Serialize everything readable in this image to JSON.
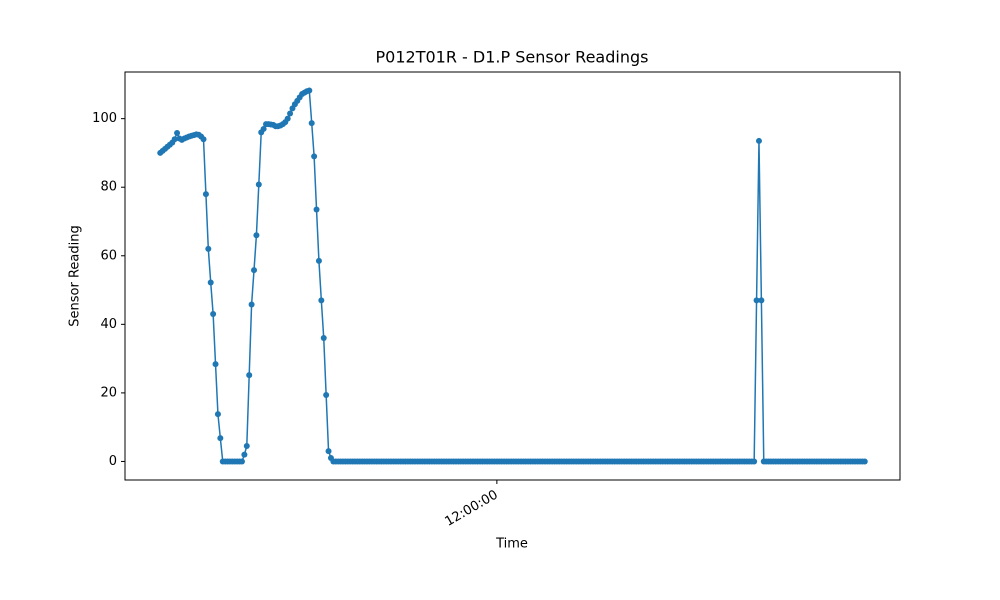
{
  "chart_data": {
    "type": "line",
    "title": "P012T01R - D1.P Sensor Readings",
    "x_label": "Time",
    "y_label": "Sensor Reading",
    "color": "#1f77b4",
    "categories": [
      null,
      null,
      null,
      null,
      null,
      null,
      null,
      null,
      null,
      null,
      null,
      null,
      null,
      null,
      null,
      null,
      null,
      null,
      null,
      null,
      null,
      null,
      null,
      null,
      null,
      null,
      null,
      null,
      null,
      null,
      null,
      null,
      null,
      null,
      null,
      null,
      null,
      null,
      null,
      null,
      null,
      null,
      null,
      null,
      null,
      null,
      null,
      null,
      null,
      null,
      null,
      null,
      null,
      null,
      null,
      null,
      null,
      null,
      null,
      null,
      null,
      null,
      null,
      null,
      null,
      null,
      null,
      null,
      null,
      null,
      null,
      null,
      null,
      null,
      null,
      null,
      null,
      null,
      null,
      null,
      null,
      null,
      null,
      null,
      null,
      null,
      null,
      null,
      null,
      null,
      null,
      null,
      null,
      null,
      null,
      null,
      null,
      null,
      null,
      null,
      null,
      null,
      null,
      null,
      null,
      null,
      null,
      null,
      null,
      null,
      null,
      null,
      null,
      null,
      null,
      null,
      null,
      null,
      null,
      null,
      null,
      null,
      null,
      null,
      null,
      null,
      null,
      null,
      null,
      null,
      null,
      null,
      null,
      null,
      null,
      null,
      null,
      null,
      null,
      null,
      "12:00:00",
      null,
      null,
      null,
      null,
      null,
      null,
      null,
      null,
      null,
      null,
      null,
      null,
      null,
      null,
      null,
      null,
      null,
      null,
      null,
      null,
      null,
      null,
      null,
      null,
      null,
      null,
      null,
      null,
      null,
      null,
      null,
      null,
      null,
      null,
      null,
      null,
      null,
      null,
      null,
      null,
      null,
      null,
      null,
      null,
      null,
      null,
      null,
      null,
      null,
      null,
      null,
      null,
      null,
      null,
      null,
      null,
      null,
      null,
      null,
      null,
      null,
      null,
      null,
      null,
      null,
      null,
      null,
      null,
      null,
      null,
      null,
      null,
      null,
      null,
      null,
      null,
      null,
      null,
      null,
      null,
      null,
      null,
      null,
      null,
      null,
      null,
      null,
      null,
      null,
      null,
      null,
      null,
      null,
      null,
      null,
      null,
      null,
      null,
      null,
      null,
      null,
      null,
      null,
      null,
      null,
      null,
      null,
      null,
      null,
      null,
      null,
      null,
      null,
      null,
      null,
      null,
      null,
      null,
      null,
      null,
      null,
      null,
      null,
      null,
      null,
      null,
      null,
      null,
      null,
      null,
      null,
      null,
      null,
      null,
      null,
      null,
      null,
      null,
      null,
      null,
      null,
      null,
      null,
      null,
      null,
      null,
      null,
      null,
      null,
      null,
      null,
      null,
      null
    ],
    "values": [
      90.0,
      90.6,
      91.2,
      91.8,
      92.4,
      93.0,
      94.0,
      95.8,
      94.2,
      93.8,
      94.2,
      94.5,
      94.8,
      95.0,
      95.2,
      95.4,
      95.3,
      94.8,
      94.0,
      78.0,
      62.0,
      52.2,
      43.0,
      28.4,
      13.8,
      6.8,
      0,
      0,
      0,
      0,
      0,
      0,
      0,
      0,
      0,
      2.0,
      4.5,
      25.2,
      45.8,
      55.8,
      66.0,
      80.8,
      96.0,
      97.0,
      98.4,
      98.4,
      98.3,
      98.2,
      97.8,
      97.8,
      98.0,
      98.4,
      99.0,
      100.0,
      101.5,
      103.0,
      104.2,
      105.2,
      106.2,
      107.2,
      107.6,
      108.0,
      108.2,
      98.7,
      89.0,
      73.5,
      58.5,
      47.0,
      36.0,
      19.4,
      3.0,
      1.0,
      0,
      0,
      0,
      0,
      0,
      0,
      0,
      0,
      0,
      0,
      0,
      0,
      0,
      0,
      0,
      0,
      0,
      0,
      0,
      0,
      0,
      0,
      0,
      0,
      0,
      0,
      0,
      0,
      0,
      0,
      0,
      0,
      0,
      0,
      0,
      0,
      0,
      0,
      0,
      0,
      0,
      0,
      0,
      0,
      0,
      0,
      0,
      0,
      0,
      0,
      0,
      0,
      0,
      0,
      0,
      0,
      0,
      0,
      0,
      0,
      0,
      0,
      0,
      0,
      0,
      0,
      0,
      0,
      0,
      0,
      0,
      0,
      0,
      0,
      0,
      0,
      0,
      0,
      0,
      0,
      0,
      0,
      0,
      0,
      0,
      0,
      0,
      0,
      0,
      0,
      0,
      0,
      0,
      0,
      0,
      0,
      0,
      0,
      0,
      0,
      0,
      0,
      0,
      0,
      0,
      0,
      0,
      0,
      0,
      0,
      0,
      0,
      0,
      0,
      0,
      0,
      0,
      0,
      0,
      0,
      0,
      0,
      0,
      0,
      0,
      0,
      0,
      0,
      0,
      0,
      0,
      0,
      0,
      0,
      0,
      0,
      0,
      0,
      0,
      0,
      0,
      0,
      0,
      0,
      0,
      0,
      0,
      0,
      0,
      0,
      0,
      0,
      0,
      0,
      0,
      0,
      0,
      0,
      0,
      0,
      0,
      0,
      0,
      0,
      0,
      0,
      0,
      0,
      0,
      0,
      0,
      0,
      0,
      0,
      0,
      0,
      47.0,
      93.5,
      47.0,
      0,
      0,
      0,
      0,
      0,
      0,
      0,
      0,
      0,
      0,
      0,
      0,
      0,
      0,
      0,
      0,
      0,
      0,
      0,
      0,
      0,
      0,
      0,
      0,
      0,
      0,
      0,
      0,
      0,
      0,
      0,
      0,
      0,
      0,
      0,
      0,
      0,
      0,
      0,
      0,
      0,
      0,
      0
    ],
    "ylim": [
      -5.41,
      113.61
    ],
    "yticks": [
      0,
      20,
      40,
      60,
      80,
      100
    ],
    "grid": false
  }
}
